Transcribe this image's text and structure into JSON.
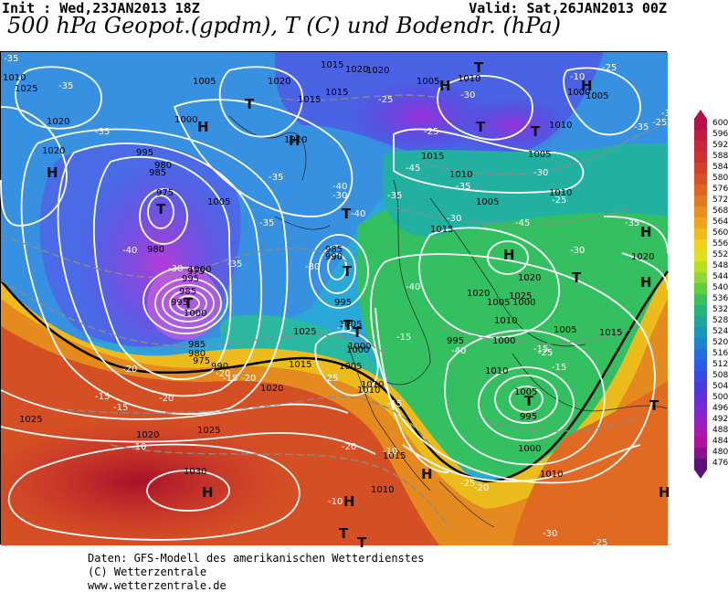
{
  "header": {
    "init": "Init : Wed,23JAN2013 18Z",
    "valid": "Valid: Sat,26JAN2013 00Z",
    "title": "500 hPa Geopot.(gpdm), T (C) und Bodendr. (hPa)"
  },
  "footer": {
    "line1": "Daten: GFS-Modell des amerikanischen Wetterdienstes",
    "line2": "(C) Wetterzentrale",
    "line3": "www.wetterzentrale.de"
  },
  "colorbar": {
    "levels": [
      "600",
      "596",
      "592",
      "588",
      "584",
      "580",
      "576",
      "572",
      "568",
      "564",
      "560",
      "556",
      "552",
      "548",
      "544",
      "540",
      "536",
      "532",
      "528",
      "524",
      "520",
      "516",
      "512",
      "508",
      "504",
      "500",
      "496",
      "492",
      "488",
      "484",
      "480",
      "476"
    ],
    "colors": [
      "#b5124c",
      "#c01c3c",
      "#c8283a",
      "#cc3030",
      "#d2402a",
      "#d85226",
      "#de6622",
      "#e47a20",
      "#eb8e1e",
      "#f0a41c",
      "#f4ba1c",
      "#f2d21c",
      "#dce21c",
      "#b8e01c",
      "#8cd830",
      "#60cc3c",
      "#3cc05a",
      "#28b478",
      "#1ca898",
      "#1898b8",
      "#1c84d0",
      "#2070e0",
      "#2a5ce8",
      "#3848e8",
      "#4a38e0",
      "#6230d8",
      "#7c28d0",
      "#9420c4",
      "#a818b4",
      "#b410a0",
      "#8a1090",
      "#60107a"
    ]
  },
  "map": {
    "pressure_labels": [
      "1010",
      "1005",
      "1020",
      "1015",
      "1010",
      "1025",
      "1020",
      "1020",
      "1000",
      "995",
      "980",
      "985",
      "975",
      "980",
      "1000",
      "995",
      "975",
      "985",
      "995",
      "1000",
      "990",
      "985",
      "980",
      "975",
      "995",
      "1000",
      "985",
      "990",
      "1005",
      "1000",
      "1005",
      "1010",
      "1015",
      "1010",
      "1005",
      "1015",
      "1020",
      "1025",
      "1020",
      "1025",
      "1030",
      "1025",
      "1015",
      "1020",
      "1010",
      "1020",
      "1005",
      "1015",
      "1010",
      "1005",
      "995",
      "1000",
      "1005",
      "1010",
      "1005",
      "1000",
      "1015",
      "1010",
      "1020",
      "1015",
      "1010",
      "1005",
      "1000",
      "1010",
      "1015",
      "1020",
      "1025",
      "1020",
      "1010",
      "1005",
      "995",
      "1000",
      "1005",
      "1010"
    ],
    "temp_labels": [
      "-35",
      "-35",
      "-30",
      "-35",
      "-40",
      "-35",
      "-45",
      "-40",
      "-45",
      "-40",
      "-35",
      "-30",
      "-40",
      "-35",
      "-30",
      "-35",
      "-30",
      "-40",
      "-30",
      "-35",
      "-25",
      "-30",
      "-20",
      "-25",
      "-15",
      "-20",
      "-15",
      "-10",
      "-15",
      "-10",
      "-20",
      "-15",
      "-15",
      "-25",
      "-25",
      "-30",
      "-25",
      "-20",
      "-15",
      "-25",
      "-15",
      "-10",
      "-25",
      "-30",
      "-35",
      "-25",
      "-20",
      "-15",
      "-20",
      "-10",
      "-35",
      "-30",
      "-25"
    ],
    "highs": [
      "H",
      "H",
      "H",
      "H",
      "H",
      "H",
      "H",
      "H",
      "H",
      "H",
      "H",
      "H"
    ],
    "lows": [
      "T",
      "T",
      "T",
      "T",
      "T",
      "T",
      "T",
      "T",
      "T",
      "T",
      "T",
      "T",
      "T",
      "T",
      "T"
    ]
  }
}
